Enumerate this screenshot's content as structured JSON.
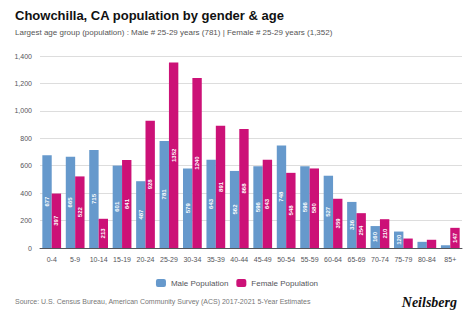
{
  "chart_data": {
    "type": "bar",
    "title": "Chowchilla, CA population by gender & age",
    "subtitle": "Largest age group (population) : Male # 25-29 years (781) | Female # 25-29 years (1,352)",
    "categories": [
      "0-4",
      "5-9",
      "10-14",
      "15-19",
      "20-24",
      "25-29",
      "30-34",
      "35-39",
      "40-44",
      "45-49",
      "50-54",
      "55-59",
      "60-64",
      "65-69",
      "70-74",
      "75-79",
      "80-84",
      "85+"
    ],
    "series": [
      {
        "name": "Male Population",
        "color": "#6699CC",
        "values": [
          677,
          665,
          715,
          601,
          487,
          781,
          579,
          643,
          562,
          596,
          748,
          596,
          527,
          336,
          160,
          120,
          45,
          20
        ],
        "value_labels": [
          "677",
          "665",
          "715",
          "601",
          "487",
          "781",
          "579",
          "643",
          "562",
          "596",
          "748",
          "596",
          "527",
          "336",
          "160",
          "120",
          null,
          null
        ]
      },
      {
        "name": "Female Population",
        "color": "#CC1177",
        "values": [
          397,
          522,
          213,
          641,
          928,
          1352,
          1240,
          891,
          868,
          643,
          548,
          580,
          359,
          254,
          210,
          69,
          60,
          147
        ],
        "value_labels": [
          "397",
          "522",
          "213",
          "641",
          "928",
          "1352",
          "1240",
          "891",
          "868",
          "643",
          "548",
          "580",
          "359",
          "254",
          "210",
          null,
          null,
          "147"
        ]
      }
    ],
    "ylim": [
      0,
      1400
    ],
    "yticks": [
      0,
      200,
      400,
      600,
      800,
      1000,
      1200,
      1400
    ],
    "grid": true,
    "legend": "bottom",
    "data_labels": true,
    "annotations": [
      "Source: U.S. Census Bureau, American Community Survey (ACS) 2017-2021 5-Year Estimates",
      "Neilsberg"
    ]
  }
}
